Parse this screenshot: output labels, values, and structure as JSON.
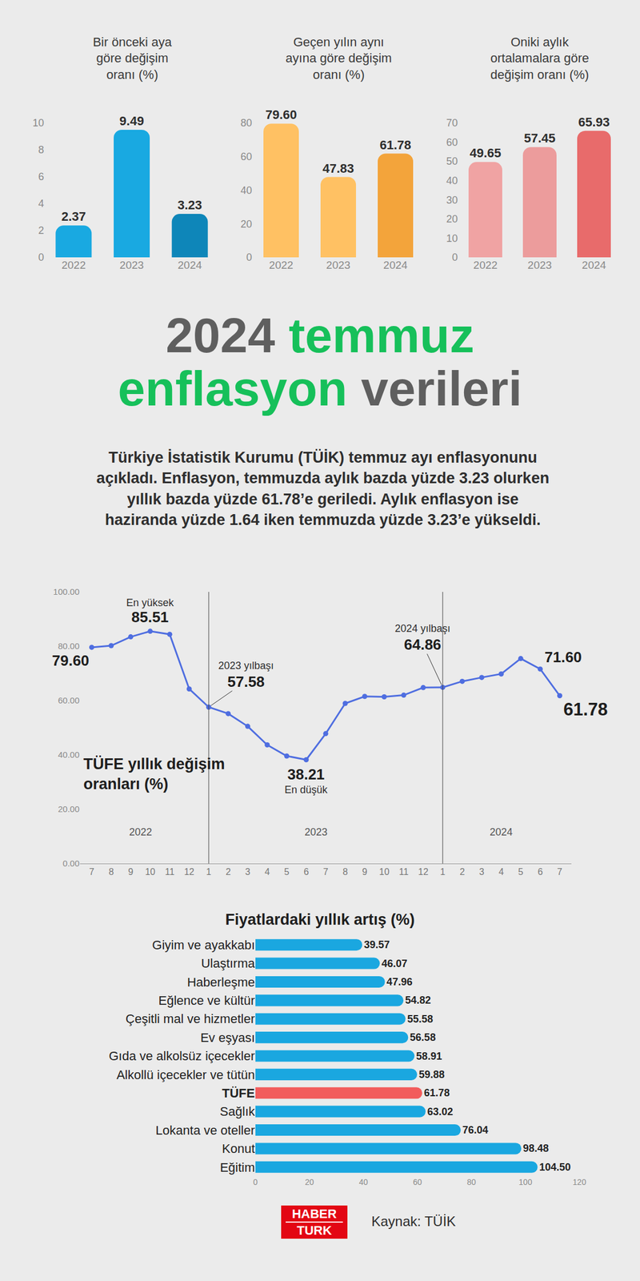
{
  "heading": {
    "lines": [
      [
        {
          "text": "2024",
          "color": "#5f5f5f"
        },
        {
          "text": "temmuz",
          "color": "#16c05a"
        }
      ],
      [
        {
          "text": "enflasyon",
          "color": "#16c05a"
        },
        {
          "text": "verileri",
          "color": "#5f5f5f"
        }
      ]
    ]
  },
  "paragraph": "Türkiye İstatistik Kurumu (TÜİK) temmuz ayı enflasyonunu açıkladı. Enflasyon, temmuzda aylık bazda yüzde 3.23 olurken yıllık bazda yüzde 61.78’e geriledi. Aylık enflasyon ise haziranda yüzde 1.64 iken temmuzda yüzde 3.23’e yükseldi.",
  "chart_data": [
    {
      "type": "bar",
      "title": "Bir önceki aya\ngöre değişim\noranı (%)",
      "categories": [
        "2022",
        "2023",
        "2024"
      ],
      "values": [
        2.37,
        9.49,
        3.23
      ],
      "value_labels": [
        "2.37",
        "9.49",
        "3.23"
      ],
      "data_labels": true,
      "colors": [
        "#19a9e1",
        "#19a9e1",
        "#0e86b9"
      ],
      "ylim": [
        0,
        10
      ],
      "yticks": [
        0,
        2,
        4,
        6,
        8,
        10
      ],
      "grid": false
    },
    {
      "type": "bar",
      "title": "Geçen yılın aynı\nayına göre değişim\noranı (%)",
      "categories": [
        "2022",
        "2023",
        "2024"
      ],
      "values": [
        79.6,
        47.83,
        61.78
      ],
      "value_labels": [
        "79.60",
        "47.83",
        "61.78"
      ],
      "data_labels": true,
      "colors": [
        "#ffc163",
        "#ffc163",
        "#f3a43b"
      ],
      "ylim": [
        0,
        80
      ],
      "yticks": [
        0,
        20,
        40,
        60,
        80
      ],
      "grid": false
    },
    {
      "type": "bar",
      "title": "Oniki aylık\nortalamalara göre\ndeğişim oranı (%)",
      "categories": [
        "2022",
        "2023",
        "2024"
      ],
      "values": [
        49.65,
        57.45,
        65.93
      ],
      "value_labels": [
        "49.65",
        "57.45",
        "65.93"
      ],
      "data_labels": true,
      "colors": [
        "#f0a3a3",
        "#ec9c9c",
        "#e86b6b"
      ],
      "ylim": [
        0,
        70
      ],
      "yticks": [
        0,
        10,
        20,
        30,
        40,
        50,
        60,
        70
      ],
      "grid": false
    },
    {
      "type": "line",
      "title": "TÜFE yıllık değişim\noranları (%)",
      "categories": [
        "7",
        "8",
        "9",
        "10",
        "11",
        "12",
        "1",
        "2",
        "3",
        "4",
        "5",
        "6",
        "7",
        "8",
        "9",
        "10",
        "11",
        "12",
        "1",
        "2",
        "3",
        "4",
        "5",
        "6",
        "7"
      ],
      "values": [
        79.6,
        80.21,
        83.45,
        85.51,
        84.39,
        64.27,
        57.58,
        55.18,
        50.51,
        43.68,
        39.59,
        38.21,
        47.83,
        58.94,
        61.53,
        61.36,
        61.98,
        64.77,
        64.86,
        67.07,
        68.5,
        69.8,
        75.45,
        71.6,
        61.78
      ],
      "color": "#4f6ee0",
      "marker": "circle",
      "line_style": "solid",
      "ylim": [
        0,
        100
      ],
      "yticks": [
        {
          "value": 0,
          "label": "0.00"
        },
        {
          "value": 20,
          "label": "20.00"
        },
        {
          "value": 40,
          "label": "40.00"
        },
        {
          "value": 60,
          "label": "60.00"
        },
        {
          "value": 80,
          "label": "80.00"
        },
        {
          "value": 100,
          "label": "100.00"
        }
      ],
      "grid": false,
      "year_labels": [
        "2022",
        "2023",
        "2024"
      ],
      "annotations": [
        {
          "at": 0,
          "text": "79.60"
        },
        {
          "at": 3,
          "label": "En yüksek",
          "text": "85.51"
        },
        {
          "at": 6,
          "label": "2023 yılbaşı",
          "text": "57.58"
        },
        {
          "at": 11,
          "label": "En düşük",
          "text": "38.21"
        },
        {
          "at": 18,
          "label": "2024 yılbaşı",
          "text": "64.86"
        },
        {
          "at": 23,
          "text": "71.60"
        },
        {
          "at": 24,
          "text": "61.78"
        }
      ]
    },
    {
      "type": "bar",
      "orientation": "horizontal",
      "title": "Fiyatlardaki yıllık artış (%)",
      "categories": [
        "Giyim ve ayakkabı",
        "Ulaştırma",
        "Haberleşme",
        "Eğlence ve kültür",
        "Çeşitli mal ve hizmetler",
        "Ev eşyası",
        "Gıda ve alkolsüz içecekler",
        "Alkollü içecekler ve tütün",
        "TÜFE",
        "Sağlık",
        "Lokanta ve oteller",
        "Konut",
        "Eğitim"
      ],
      "values": [
        39.57,
        46.07,
        47.96,
        54.82,
        55.58,
        56.58,
        58.91,
        59.88,
        61.78,
        63.02,
        76.04,
        98.48,
        104.5
      ],
      "value_labels": [
        "39.57",
        "46.07",
        "47.96",
        "54.82",
        "55.58",
        "56.58",
        "58.91",
        "59.88",
        "61.78",
        "63.02",
        "76.04",
        "98.48",
        "104.50"
      ],
      "data_labels": true,
      "colors": [
        "#1aa7e0",
        "#1aa7e0",
        "#1aa7e0",
        "#1aa7e0",
        "#1aa7e0",
        "#1aa7e0",
        "#1aa7e0",
        "#1aa7e0",
        "#f25c5c",
        "#1aa7e0",
        "#1aa7e0",
        "#1aa7e0",
        "#1aa7e0"
      ],
      "xlim": [
        0,
        120
      ],
      "xticks": [
        0,
        20,
        40,
        60,
        80,
        100,
        120
      ],
      "grid": false
    }
  ],
  "footer": {
    "logo": [
      "HABER",
      "TURK"
    ],
    "source": "Kaynak: TÜİK"
  }
}
